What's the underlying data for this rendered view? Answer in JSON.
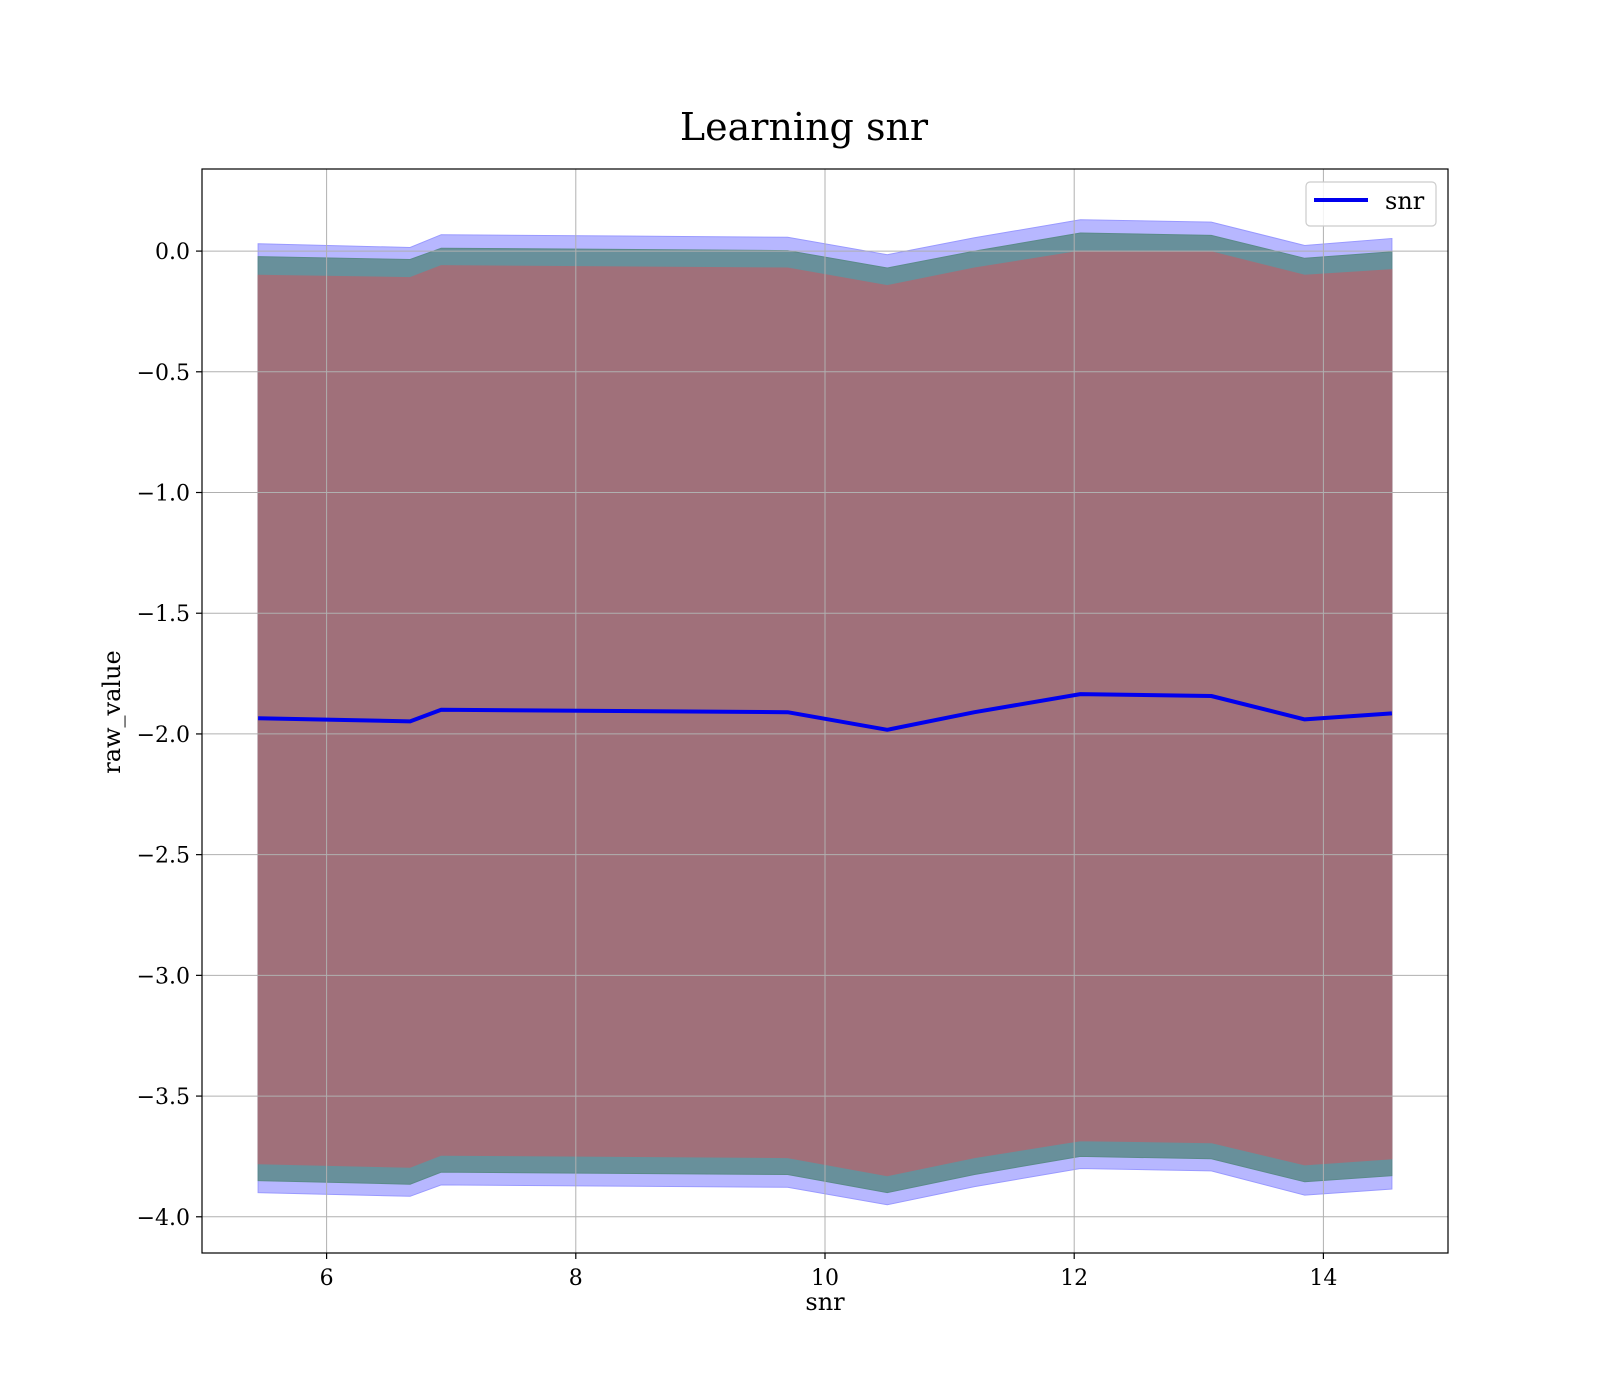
{
  "chart_data": {
    "type": "line",
    "title": "Learning snr",
    "xlabel": "snr",
    "ylabel": "raw_value",
    "xlim": [
      5.0,
      15.0
    ],
    "ylim": [
      -4.15,
      0.34
    ],
    "xticks": [
      6,
      8,
      10,
      12,
      14
    ],
    "xtick_labels": [
      "6",
      "8",
      "10",
      "12",
      "14"
    ],
    "yticks": [
      0.0,
      -0.5,
      -1.0,
      -1.5,
      -2.0,
      -2.5,
      -3.0,
      -3.5,
      -4.0
    ],
    "ytick_labels": [
      "0.0",
      "−0.5",
      "−1.0",
      "−1.5",
      "−2.0",
      "−2.5",
      "−3.0",
      "−3.5",
      "−4.0"
    ],
    "grid": true,
    "legend": {
      "position": "top-right",
      "entries": [
        "snr"
      ]
    },
    "x": [
      5.45,
      6.67,
      6.92,
      9.7,
      10.5,
      11.2,
      12.05,
      13.1,
      13.85,
      14.55
    ],
    "series": [
      {
        "name": "snr",
        "color": "#0000ee",
        "values": [
          -1.935,
          -1.948,
          -1.9,
          -1.91,
          -1.983,
          -1.91,
          -1.835,
          -1.843,
          -1.94,
          -1.915
        ]
      }
    ],
    "bands": [
      {
        "color": "#9999ff",
        "opacity": 0.7,
        "upper": [
          0.03,
          0.015,
          0.068,
          0.057,
          -0.015,
          0.055,
          0.13,
          0.12,
          0.023,
          0.052
        ],
        "lower": [
          -3.9,
          -3.915,
          -3.868,
          -3.878,
          -3.95,
          -3.875,
          -3.8,
          -3.81,
          -3.91,
          -3.885
        ]
      },
      {
        "color": "#5b8a8a",
        "opacity": 0.85,
        "upper": [
          -0.023,
          -0.035,
          0.012,
          0.002,
          -0.07,
          0.0,
          0.075,
          0.065,
          -0.03,
          -0.003
        ],
        "lower": [
          -3.85,
          -3.865,
          -3.815,
          -3.825,
          -3.9,
          -3.825,
          -3.75,
          -3.76,
          -3.855,
          -3.83
        ]
      },
      {
        "color": "#a0707a",
        "opacity": 1.0,
        "upper": [
          -0.1,
          -0.11,
          -0.06,
          -0.07,
          -0.143,
          -0.07,
          0.0,
          -0.003,
          -0.1,
          -0.077
        ],
        "lower": [
          -3.78,
          -3.795,
          -3.745,
          -3.755,
          -3.83,
          -3.755,
          -3.685,
          -3.693,
          -3.785,
          -3.76
        ]
      }
    ]
  }
}
